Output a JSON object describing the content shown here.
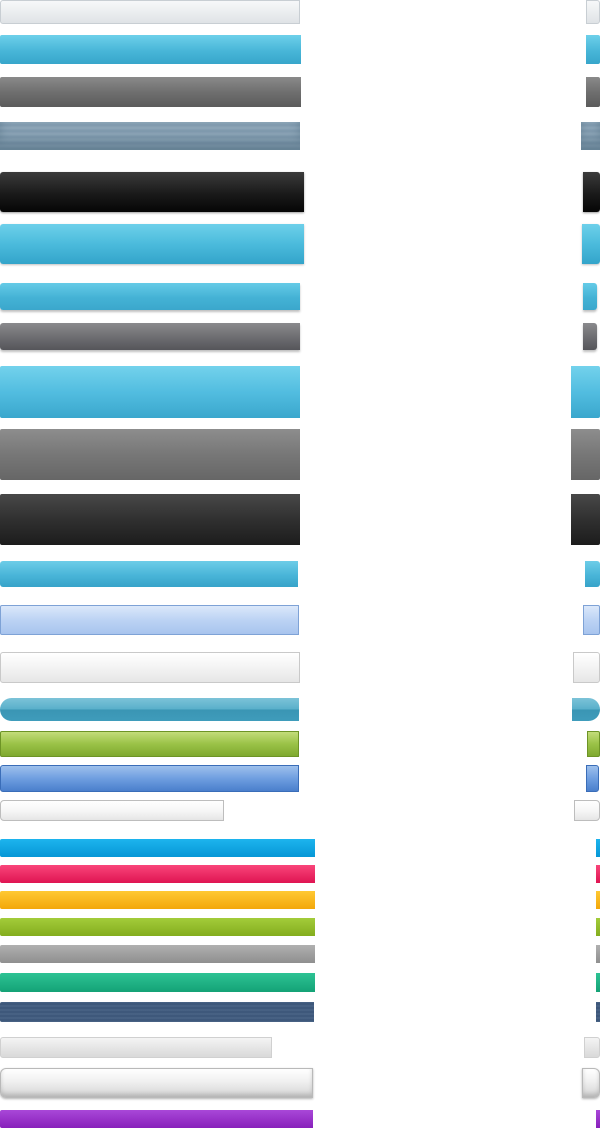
{
  "bar_styles": [
    {
      "id": 1,
      "colors": [
        "#f7f8f9",
        "#dfe3e6"
      ]
    },
    {
      "id": 2,
      "colors": [
        "#6dd0ea",
        "#37a6cb"
      ]
    },
    {
      "id": 3,
      "colors": [
        "#8a8a8a",
        "#5b5b5b"
      ]
    },
    {
      "id": 4,
      "colors": [
        "#8ea6b8",
        "#7f99ad"
      ]
    },
    {
      "id": 5,
      "colors": [
        "#3b3b3b",
        "#050505"
      ]
    },
    {
      "id": 6,
      "colors": [
        "#6dd0ea",
        "#33a4ca"
      ]
    },
    {
      "id": 7,
      "colors": [
        "#65cbe7",
        "#3ba7cc"
      ]
    },
    {
      "id": 8,
      "colors": [
        "#8a8a8d",
        "#55555a"
      ]
    },
    {
      "id": 9,
      "colors": [
        "#73d2ec",
        "#3aa7cd"
      ]
    },
    {
      "id": 10,
      "colors": [
        "#8d8d8d",
        "#666666"
      ]
    },
    {
      "id": 11,
      "colors": [
        "#484848",
        "#1c1c1c"
      ]
    },
    {
      "id": 12,
      "colors": [
        "#6dcde8",
        "#37a3c9"
      ]
    },
    {
      "id": 13,
      "colors": [
        "#dbe8fa",
        "#a8c4ee"
      ]
    },
    {
      "id": 14,
      "colors": [
        "#ffffff",
        "#e6e6e6"
      ]
    },
    {
      "id": 15,
      "colors": [
        "#7cc3d8",
        "#3a95b4"
      ]
    },
    {
      "id": 16,
      "colors": [
        "#c3dc7a",
        "#7fa92f"
      ]
    },
    {
      "id": 17,
      "colors": [
        "#9ec0ec",
        "#4a7fcc"
      ]
    },
    {
      "id": 18,
      "colors": [
        "#ffffff",
        "#e5e5e5"
      ]
    },
    {
      "id": 19,
      "colors": [
        "#1db4ee",
        "#0697d6"
      ]
    },
    {
      "id": 20,
      "colors": [
        "#f9457a",
        "#df1452"
      ]
    },
    {
      "id": 21,
      "colors": [
        "#ffc933",
        "#f3a70a"
      ]
    },
    {
      "id": 22,
      "colors": [
        "#a3cc3a",
        "#84ad1e"
      ]
    },
    {
      "id": 23,
      "colors": [
        "#b0b0b0",
        "#8f8f8f"
      ]
    },
    {
      "id": 24,
      "colors": [
        "#2dc394",
        "#14a276"
      ]
    },
    {
      "id": 25,
      "colors": [
        "#4b6587",
        "#3a5477"
      ]
    },
    {
      "id": 26,
      "colors": [
        "#f4f4f4",
        "#d9d9d9"
      ]
    },
    {
      "id": 27,
      "colors": [
        "#ffffff",
        "#d3d3d3"
      ]
    },
    {
      "id": 28,
      "colors": [
        "#a947d8",
        "#8820bb"
      ]
    }
  ]
}
